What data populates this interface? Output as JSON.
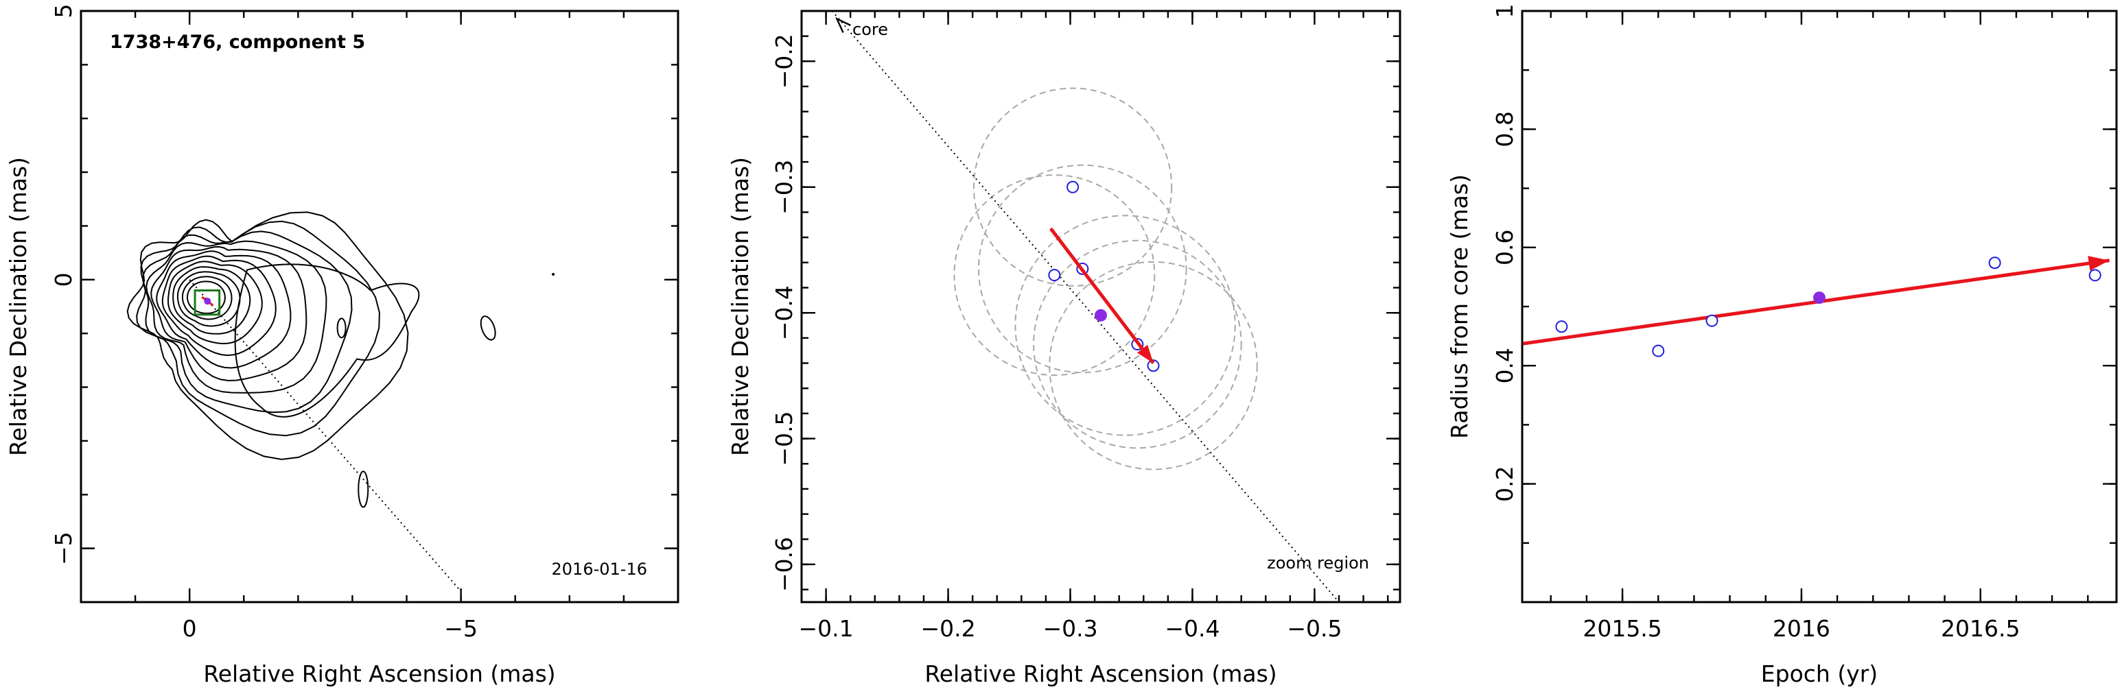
{
  "colors": {
    "trend": "#e8141c",
    "open_point": "#1f1fe0",
    "filled_point": "#8a2be2",
    "circle": "#a8a8a8",
    "contour": "#000000",
    "box": "#1a7a1a"
  },
  "chart_data": [
    {
      "type": "contour",
      "title": "1738+476, component 5",
      "annotation": "2016-01-16",
      "xlabel": "Relative Right Ascension (mas)",
      "ylabel": "Relative Declination (mas)",
      "xlim": [
        2.0,
        -9.0
      ],
      "ylim": [
        -6.0,
        5.0
      ],
      "xticks": [
        0,
        -5
      ],
      "yticks": [
        -5,
        0,
        5
      ],
      "x_tick_labels": [
        "0",
        "−5"
      ],
      "y_tick_labels": [
        "−5",
        "0",
        "5"
      ],
      "contour_center": [
        -0.1,
        -0.2
      ],
      "core_to_component_line": {
        "from": [
          0.0,
          0.0
        ],
        "to": [
          -5.0,
          -5.8
        ]
      },
      "zoom_box": {
        "x": [
          -0.1,
          -0.55
        ],
        "y": [
          -0.2,
          -0.65
        ]
      },
      "component_position": [
        -0.33,
        -0.4
      ]
    },
    {
      "type": "scatter",
      "xlabel": "Relative Right Ascension (mas)",
      "ylabel": "Relative Declination (mas)",
      "xlim": [
        -0.08,
        -0.57
      ],
      "ylim": [
        -0.63,
        -0.16
      ],
      "xticks": [
        -0.1,
        -0.2,
        -0.3,
        -0.4,
        -0.5
      ],
      "yticks": [
        -0.6,
        -0.5,
        -0.4,
        -0.3,
        -0.2
      ],
      "x_tick_labels": [
        "−0.1",
        "−0.2",
        "−0.3",
        "−0.4",
        "−0.5"
      ],
      "y_tick_labels": [
        "−0.6",
        "−0.5",
        "−0.4",
        "−0.3",
        "−0.2"
      ],
      "labels": {
        "core": "core",
        "zoom": "zoom region"
      },
      "core_line": {
        "from": [
          -0.105,
          -0.16
        ],
        "to": [
          -0.52,
          -0.63
        ]
      },
      "points": [
        {
          "x": -0.302,
          "y": -0.3
        },
        {
          "x": -0.31,
          "y": -0.365
        },
        {
          "x": -0.287,
          "y": -0.37
        },
        {
          "x": -0.355,
          "y": -0.425
        },
        {
          "x": -0.368,
          "y": -0.442
        }
      ],
      "mean_position": {
        "x": -0.325,
        "y": -0.402
      },
      "beam_circles": [
        {
          "x": -0.302,
          "y": -0.3,
          "r": 0.081
        },
        {
          "x": -0.31,
          "y": -0.365,
          "r": 0.085
        },
        {
          "x": -0.287,
          "y": -0.37,
          "r": 0.082
        },
        {
          "x": -0.355,
          "y": -0.425,
          "r": 0.085
        },
        {
          "x": -0.368,
          "y": -0.442,
          "r": 0.085
        },
        {
          "x": -0.345,
          "y": -0.41,
          "r": 0.09
        }
      ],
      "trend_arrow": {
        "from": [
          -0.284,
          -0.333
        ],
        "to": [
          -0.368,
          -0.44
        ]
      }
    },
    {
      "type": "scatter",
      "xlabel": "Epoch (yr)",
      "ylabel": "Radius from core (mas)",
      "xlim": [
        2015.22,
        2016.88
      ],
      "ylim": [
        0.0,
        1.0
      ],
      "xticks": [
        2015.5,
        2016,
        2016.5
      ],
      "yticks": [
        0.2,
        0.4,
        0.6,
        0.8,
        1.0
      ],
      "x_tick_labels": [
        "2015.5",
        "2016",
        "2016.5"
      ],
      "y_tick_labels": [
        "0.2",
        "0.4",
        "0.6",
        "0.8",
        "1"
      ],
      "points": [
        {
          "x": 2015.33,
          "y": 0.466
        },
        {
          "x": 2015.6,
          "y": 0.425
        },
        {
          "x": 2015.75,
          "y": 0.476
        },
        {
          "x": 2016.54,
          "y": 0.574
        },
        {
          "x": 2016.82,
          "y": 0.553
        }
      ],
      "mean_point": {
        "x": 2016.05,
        "y": 0.515
      },
      "trend": {
        "from": [
          2015.22,
          0.437
        ],
        "to": [
          2016.86,
          0.578
        ]
      }
    }
  ]
}
